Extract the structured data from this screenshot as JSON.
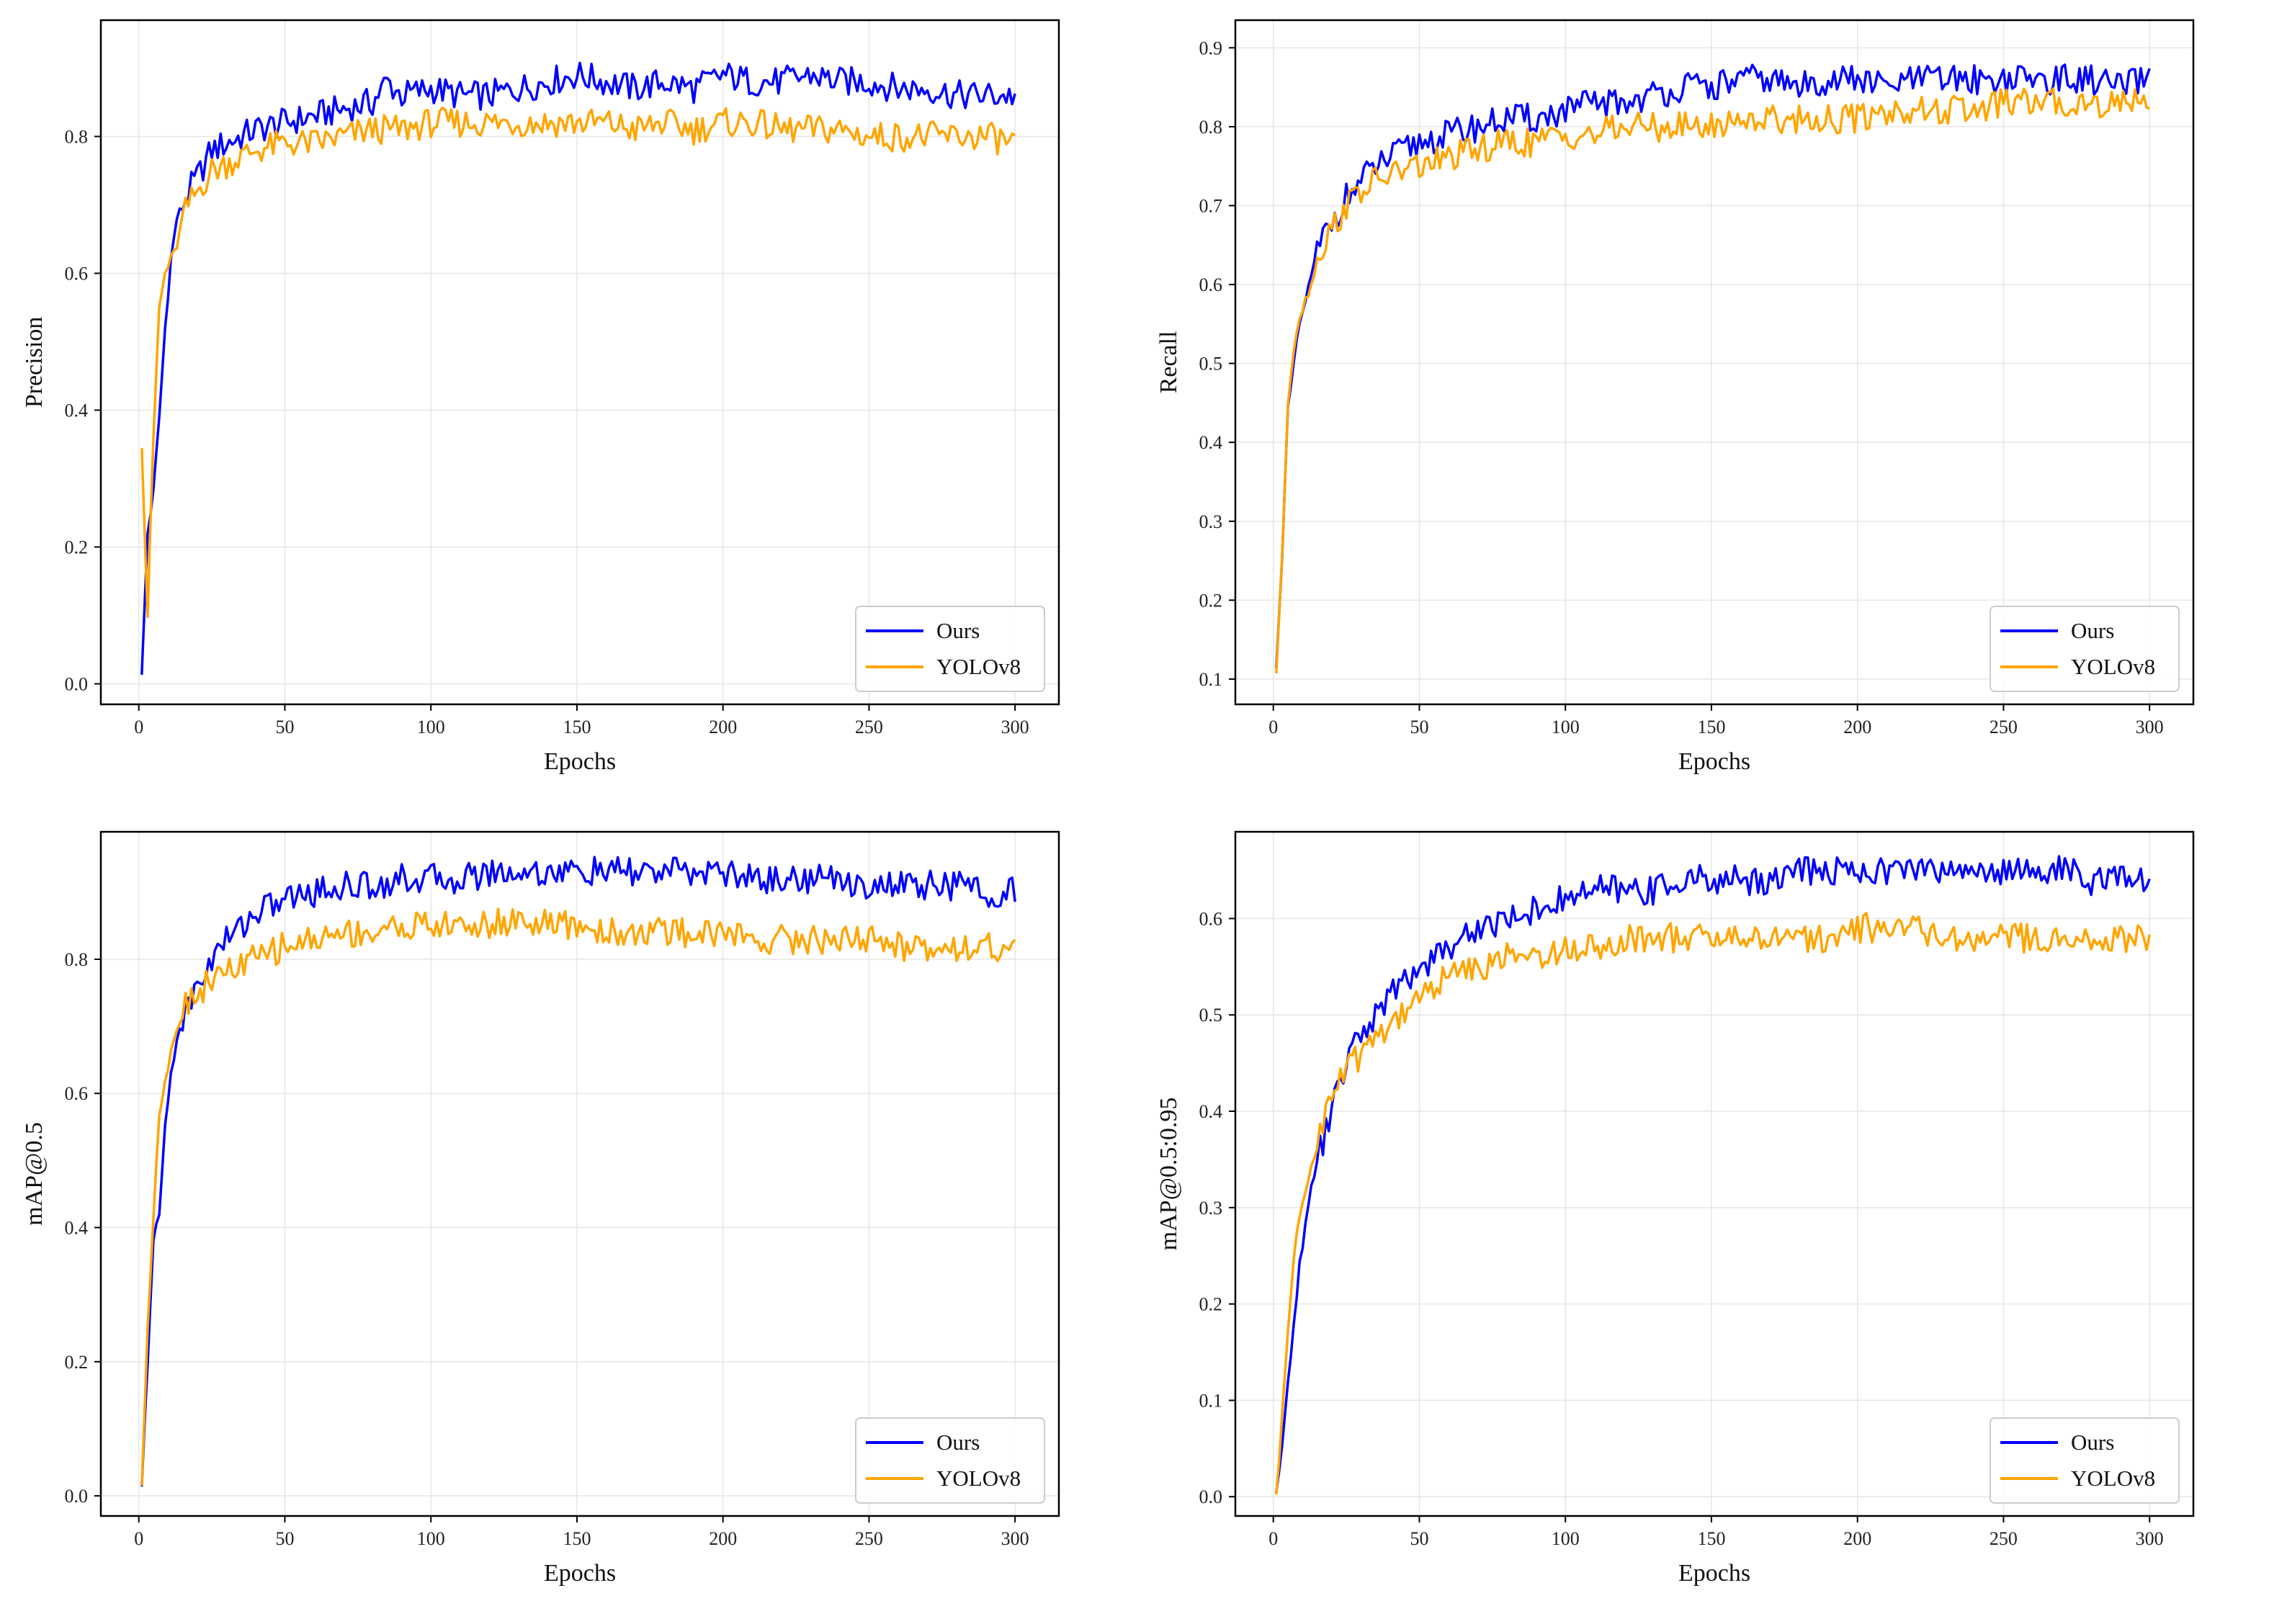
{
  "figure": {
    "columns": 2,
    "rows": 2
  },
  "colors": {
    "ours": "#0000ff",
    "yolov8": "#ffa500",
    "grid": "#e6e6e6",
    "axis": "#000000"
  },
  "chart_data": [
    {
      "type": "line",
      "title": "",
      "xlabel": "Epochs",
      "ylabel": "Precision",
      "xlim": [
        -13,
        315
      ],
      "ylim": [
        -0.03,
        0.97
      ],
      "xticks": [
        0,
        50,
        100,
        150,
        200,
        250,
        300
      ],
      "yticks": [
        0.0,
        0.2,
        0.4,
        0.6,
        0.8
      ],
      "ytick_labels": [
        "0.0",
        "0.2",
        "0.4",
        "0.6",
        "0.8"
      ],
      "grid": true,
      "legend_position": "lower-right",
      "series": [
        {
          "name": "Ours",
          "color": "#0000ff",
          "x": [
            1,
            3,
            5,
            7,
            9,
            11,
            13,
            15,
            17,
            20,
            25,
            30,
            35,
            40,
            50,
            60,
            70,
            80,
            85,
            90,
            100,
            110,
            120,
            130,
            140,
            150,
            160,
            170,
            180,
            190,
            200,
            210,
            220,
            230,
            240,
            250,
            260,
            270,
            280,
            290,
            300
          ],
          "values": [
            0.01,
            0.22,
            0.28,
            0.39,
            0.52,
            0.62,
            0.68,
            0.7,
            0.72,
            0.74,
            0.78,
            0.79,
            0.8,
            0.81,
            0.82,
            0.83,
            0.84,
            0.85,
            0.88,
            0.86,
            0.87,
            0.86,
            0.86,
            0.87,
            0.88,
            0.89,
            0.88,
            0.87,
            0.88,
            0.87,
            0.89,
            0.88,
            0.88,
            0.89,
            0.88,
            0.88,
            0.87,
            0.87,
            0.86,
            0.86,
            0.86
          ]
        },
        {
          "name": "YOLOv8",
          "color": "#ffa500",
          "x": [
            1,
            3,
            5,
            7,
            9,
            11,
            13,
            15,
            17,
            20,
            25,
            30,
            35,
            40,
            50,
            60,
            70,
            80,
            90,
            100,
            110,
            120,
            130,
            140,
            150,
            160,
            170,
            180,
            190,
            200,
            210,
            220,
            230,
            240,
            250,
            260,
            270,
            280,
            290,
            300
          ],
          "values": [
            0.35,
            0.1,
            0.36,
            0.55,
            0.6,
            0.62,
            0.64,
            0.68,
            0.7,
            0.72,
            0.75,
            0.76,
            0.77,
            0.78,
            0.79,
            0.79,
            0.8,
            0.81,
            0.81,
            0.82,
            0.82,
            0.82,
            0.82,
            0.82,
            0.82,
            0.82,
            0.81,
            0.82,
            0.81,
            0.82,
            0.82,
            0.81,
            0.81,
            0.81,
            0.8,
            0.8,
            0.8,
            0.8,
            0.8,
            0.79
          ]
        }
      ]
    },
    {
      "type": "line",
      "title": "",
      "xlabel": "Epochs",
      "ylabel": "Recall",
      "xlim": [
        -13,
        315
      ],
      "ylim": [
        0.068,
        0.935
      ],
      "xticks": [
        0,
        50,
        100,
        150,
        200,
        250,
        300
      ],
      "yticks": [
        0.1,
        0.2,
        0.3,
        0.4,
        0.5,
        0.6,
        0.7,
        0.8,
        0.9
      ],
      "ytick_labels": [
        "0.1",
        "0.2",
        "0.3",
        "0.4",
        "0.5",
        "0.6",
        "0.7",
        "0.8",
        "0.9"
      ],
      "grid": true,
      "legend_position": "lower-right",
      "series": [
        {
          "name": "Ours",
          "color": "#0000ff",
          "x": [
            1,
            3,
            5,
            7,
            9,
            11,
            13,
            15,
            17,
            20,
            25,
            30,
            35,
            40,
            50,
            60,
            70,
            80,
            90,
            100,
            110,
            120,
            130,
            140,
            150,
            160,
            170,
            180,
            190,
            200,
            210,
            220,
            230,
            240,
            250,
            260,
            270,
            280,
            290,
            300
          ],
          "values": [
            0.12,
            0.25,
            0.44,
            0.5,
            0.55,
            0.58,
            0.61,
            0.64,
            0.66,
            0.68,
            0.71,
            0.73,
            0.75,
            0.76,
            0.78,
            0.79,
            0.8,
            0.81,
            0.81,
            0.82,
            0.83,
            0.83,
            0.84,
            0.85,
            0.85,
            0.86,
            0.86,
            0.85,
            0.86,
            0.86,
            0.85,
            0.86,
            0.86,
            0.86,
            0.86,
            0.86,
            0.86,
            0.86,
            0.85,
            0.86
          ]
        },
        {
          "name": "YOLOv8",
          "color": "#ffa500",
          "x": [
            1,
            3,
            5,
            7,
            9,
            11,
            13,
            15,
            17,
            20,
            25,
            30,
            35,
            40,
            50,
            60,
            70,
            80,
            90,
            100,
            110,
            120,
            130,
            140,
            150,
            160,
            170,
            180,
            190,
            200,
            210,
            220,
            230,
            240,
            250,
            260,
            270,
            280,
            290,
            300
          ],
          "values": [
            0.11,
            0.25,
            0.45,
            0.52,
            0.56,
            0.58,
            0.6,
            0.63,
            0.65,
            0.67,
            0.7,
            0.72,
            0.73,
            0.74,
            0.75,
            0.76,
            0.77,
            0.78,
            0.78,
            0.79,
            0.79,
            0.8,
            0.8,
            0.8,
            0.8,
            0.81,
            0.81,
            0.81,
            0.81,
            0.81,
            0.82,
            0.82,
            0.82,
            0.82,
            0.83,
            0.83,
            0.83,
            0.83,
            0.83,
            0.84
          ]
        }
      ]
    },
    {
      "type": "line",
      "title": "",
      "xlabel": "Epochs",
      "ylabel": "mAP@0.5",
      "xlim": [
        -13,
        315
      ],
      "ylim": [
        -0.03,
        0.99
      ],
      "xticks": [
        0,
        50,
        100,
        150,
        200,
        250,
        300
      ],
      "yticks": [
        0.0,
        0.2,
        0.4,
        0.6,
        0.8
      ],
      "ytick_labels": [
        "0.0",
        "0.2",
        "0.4",
        "0.6",
        "0.8"
      ],
      "grid": true,
      "legend_position": "lower-right",
      "series": [
        {
          "name": "Ours",
          "color": "#0000ff",
          "x": [
            1,
            3,
            5,
            7,
            9,
            11,
            13,
            15,
            17,
            20,
            25,
            30,
            35,
            40,
            50,
            60,
            70,
            80,
            90,
            100,
            110,
            120,
            130,
            140,
            150,
            160,
            170,
            180,
            190,
            200,
            210,
            220,
            230,
            240,
            250,
            260,
            270,
            280,
            290,
            300
          ],
          "values": [
            0.01,
            0.2,
            0.38,
            0.42,
            0.55,
            0.63,
            0.68,
            0.71,
            0.73,
            0.76,
            0.8,
            0.83,
            0.85,
            0.87,
            0.89,
            0.9,
            0.91,
            0.91,
            0.92,
            0.92,
            0.92,
            0.93,
            0.93,
            0.93,
            0.93,
            0.93,
            0.93,
            0.93,
            0.93,
            0.93,
            0.92,
            0.92,
            0.92,
            0.92,
            0.91,
            0.91,
            0.91,
            0.91,
            0.9,
            0.9
          ]
        },
        {
          "name": "YOLOv8",
          "color": "#ffa500",
          "x": [
            1,
            3,
            5,
            7,
            9,
            11,
            13,
            15,
            17,
            20,
            25,
            30,
            35,
            40,
            50,
            60,
            70,
            80,
            90,
            100,
            110,
            120,
            130,
            140,
            150,
            160,
            170,
            180,
            190,
            200,
            210,
            220,
            230,
            240,
            250,
            260,
            270,
            280,
            290,
            300
          ],
          "values": [
            0.01,
            0.25,
            0.42,
            0.57,
            0.62,
            0.66,
            0.7,
            0.72,
            0.74,
            0.75,
            0.77,
            0.78,
            0.79,
            0.8,
            0.82,
            0.83,
            0.84,
            0.84,
            0.85,
            0.85,
            0.85,
            0.85,
            0.86,
            0.85,
            0.85,
            0.84,
            0.84,
            0.84,
            0.84,
            0.84,
            0.83,
            0.83,
            0.83,
            0.83,
            0.83,
            0.82,
            0.82,
            0.82,
            0.82,
            0.81
          ]
        }
      ]
    },
    {
      "type": "line",
      "title": "",
      "xlabel": "Epochs",
      "ylabel": "mAP@0.5:0.95",
      "xlim": [
        -13,
        315
      ],
      "ylim": [
        -0.02,
        0.69
      ],
      "xticks": [
        0,
        50,
        100,
        150,
        200,
        250,
        300
      ],
      "yticks": [
        0.0,
        0.1,
        0.2,
        0.3,
        0.4,
        0.5,
        0.6
      ],
      "ytick_labels": [
        "0.0",
        "0.1",
        "0.2",
        "0.3",
        "0.4",
        "0.5",
        "0.6"
      ],
      "grid": true,
      "legend_position": "lower-right",
      "series": [
        {
          "name": "Ours",
          "color": "#0000ff",
          "x": [
            1,
            3,
            5,
            7,
            9,
            11,
            13,
            15,
            17,
            20,
            25,
            30,
            35,
            40,
            50,
            60,
            70,
            80,
            90,
            100,
            110,
            120,
            130,
            140,
            150,
            160,
            170,
            180,
            190,
            200,
            210,
            220,
            230,
            240,
            250,
            260,
            270,
            280,
            290,
            300
          ],
          "values": [
            0.0,
            0.05,
            0.12,
            0.18,
            0.24,
            0.28,
            0.32,
            0.35,
            0.37,
            0.4,
            0.45,
            0.48,
            0.5,
            0.52,
            0.55,
            0.57,
            0.59,
            0.6,
            0.61,
            0.62,
            0.63,
            0.63,
            0.63,
            0.64,
            0.64,
            0.64,
            0.64,
            0.65,
            0.65,
            0.65,
            0.65,
            0.65,
            0.65,
            0.65,
            0.65,
            0.65,
            0.65,
            0.64,
            0.64,
            0.64
          ]
        },
        {
          "name": "YOLOv8",
          "color": "#ffa500",
          "x": [
            1,
            3,
            5,
            7,
            9,
            11,
            13,
            15,
            17,
            20,
            25,
            30,
            35,
            40,
            50,
            60,
            70,
            80,
            90,
            100,
            110,
            120,
            130,
            140,
            150,
            160,
            170,
            180,
            190,
            200,
            210,
            220,
            230,
            240,
            250,
            260,
            270,
            280,
            290,
            300
          ],
          "values": [
            0.0,
            0.08,
            0.17,
            0.25,
            0.29,
            0.32,
            0.34,
            0.37,
            0.39,
            0.42,
            0.44,
            0.46,
            0.48,
            0.49,
            0.52,
            0.54,
            0.55,
            0.56,
            0.56,
            0.57,
            0.57,
            0.58,
            0.58,
            0.58,
            0.58,
            0.58,
            0.58,
            0.58,
            0.58,
            0.59,
            0.59,
            0.59,
            0.58,
            0.58,
            0.58,
            0.58,
            0.58,
            0.58,
            0.58,
            0.58
          ]
        }
      ]
    }
  ]
}
